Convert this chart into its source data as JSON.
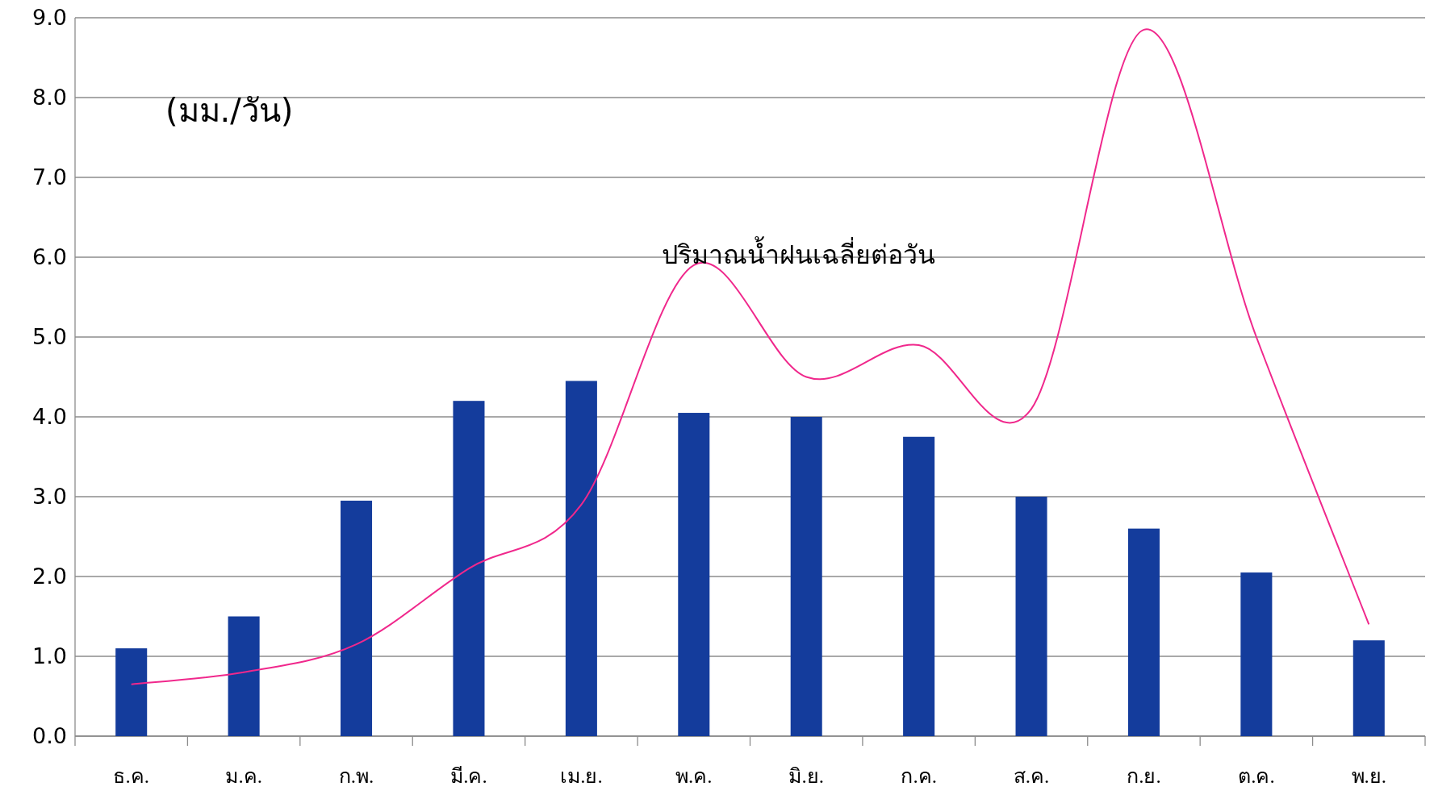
{
  "chart_data": {
    "type": "bar",
    "ylabel": "(มม./วัน)",
    "categories": [
      "ธ.ค.",
      "ม.ค.",
      "ก.พ.",
      "มี.ค.",
      "เม.ย.",
      "พ.ค.",
      "มิ.ย.",
      "ก.ค.",
      "ส.ค.",
      "ก.ย.",
      "ต.ค.",
      "พ.ย."
    ],
    "series": [
      {
        "color": "#143c9c",
        "values": [
          1.1,
          1.5,
          2.95,
          4.2,
          4.45,
          4.05,
          4.0,
          3.75,
          3.0,
          2.6,
          2.05,
          1.2
        ]
      },
      {
        "type": "line",
        "name": "ปริมาณน้ำฝนเฉลี่ยต่อวัน",
        "color": "#f0288c",
        "values": [
          0.65,
          0.8,
          1.15,
          2.1,
          2.9,
          5.9,
          4.5,
          4.9,
          4.1,
          8.85,
          5.0,
          1.4
        ]
      }
    ],
    "ylim": [
      0,
      9
    ],
    "yticks": [
      {
        "value": 0,
        "label": "0.0"
      },
      {
        "value": 1,
        "label": "1.0"
      },
      {
        "value": 2,
        "label": "2.0"
      },
      {
        "value": 3,
        "label": "3.0"
      },
      {
        "value": 4,
        "label": "4.0"
      },
      {
        "value": 5,
        "label": "5.0"
      },
      {
        "value": 6,
        "label": "6.0"
      },
      {
        "value": 7,
        "label": "7.0"
      },
      {
        "value": 8,
        "label": "8.0"
      },
      {
        "value": 9,
        "label": "9.0"
      }
    ],
    "grid": "y",
    "marker": "none",
    "line_style": "solid"
  }
}
